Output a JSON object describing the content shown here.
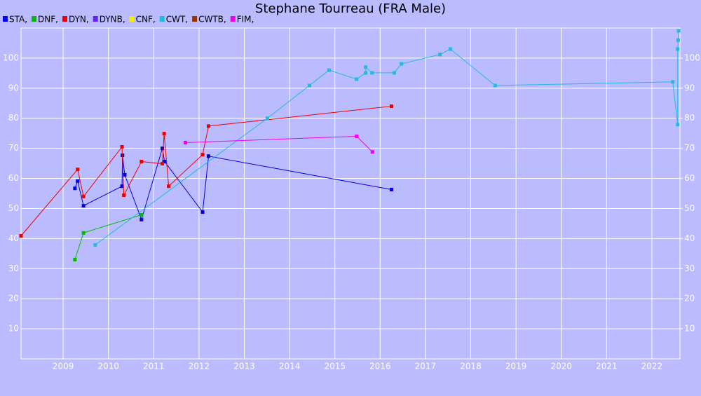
{
  "chart_data": {
    "type": "line",
    "title": "Stephane Tourreau (FRA Male)",
    "xlim": [
      2008.07,
      2022.62
    ],
    "xticks": [
      2009,
      2010,
      2011,
      2012,
      2013,
      2014,
      2015,
      2016,
      2017,
      2018,
      2019,
      2020,
      2021,
      2022
    ],
    "ylim": [
      0,
      110
    ],
    "yticks": [
      10,
      20,
      30,
      40,
      50,
      60,
      70,
      80,
      90,
      100
    ],
    "y2lim": [
      0,
      110
    ],
    "y2ticks": [
      10,
      20,
      30,
      40,
      50,
      60,
      70,
      80,
      90,
      100
    ],
    "grid": true,
    "series": [
      {
        "name": "STA,",
        "color": "#0000dd",
        "x": [
          2009.26,
          2009.32,
          2009.45,
          2010.3,
          2010.31,
          2010.36,
          2010.73,
          2011.19,
          2011.24,
          2012.08,
          2012.21,
          2016.25
        ],
        "values": [
          56.7,
          59.1,
          50.9,
          57.4,
          67.7,
          61.2,
          46.3,
          70.0,
          65.6,
          48.8,
          67.4,
          56.3
        ]
      },
      {
        "name": "DNF,",
        "color": "#00bb00",
        "x": [
          2009.26,
          2009.45,
          2010.73
        ],
        "values": [
          33.0,
          41.9,
          47.9
        ]
      },
      {
        "name": "DYN,",
        "color": "#ee0000",
        "x": [
          2008.07,
          2009.32,
          2009.45,
          2010.3,
          2010.34,
          2010.73,
          2011.19,
          2011.23,
          2011.33,
          2012.08,
          2012.21,
          2016.25
        ],
        "values": [
          40.9,
          63.0,
          54.0,
          70.5,
          54.4,
          65.6,
          64.9,
          74.9,
          57.4,
          67.9,
          77.4,
          84.0
        ]
      },
      {
        "name": "DYNB,",
        "color": "#6622ee",
        "x": [],
        "values": []
      },
      {
        "name": "CNF,",
        "color": "#eeee00",
        "x": [],
        "values": []
      },
      {
        "name": "CWT,",
        "color": "#22bbdd",
        "x": [
          2009.71,
          2013.51,
          2014.44,
          2014.87,
          2015.48,
          2015.68,
          2015.68,
          2015.82,
          2016.31,
          2016.47,
          2017.32,
          2017.55,
          2018.54,
          2022.46,
          2022.57,
          2022.57,
          2022.58,
          2022.59
        ],
        "values": [
          37.9,
          80.0,
          90.9,
          96.0,
          93.0,
          95.1,
          97.0,
          95.1,
          95.1,
          98.1,
          101.2,
          103.0,
          90.9,
          92.1,
          77.9,
          103.0,
          106.0,
          109.1
        ]
      },
      {
        "name": "CWTB,",
        "color": "#993300",
        "x": [],
        "values": []
      },
      {
        "name": "FIM,",
        "color": "#ee00ee",
        "x": [
          2011.7,
          2015.48,
          2015.83
        ],
        "values": [
          71.9,
          74.0,
          68.8
        ]
      }
    ]
  }
}
